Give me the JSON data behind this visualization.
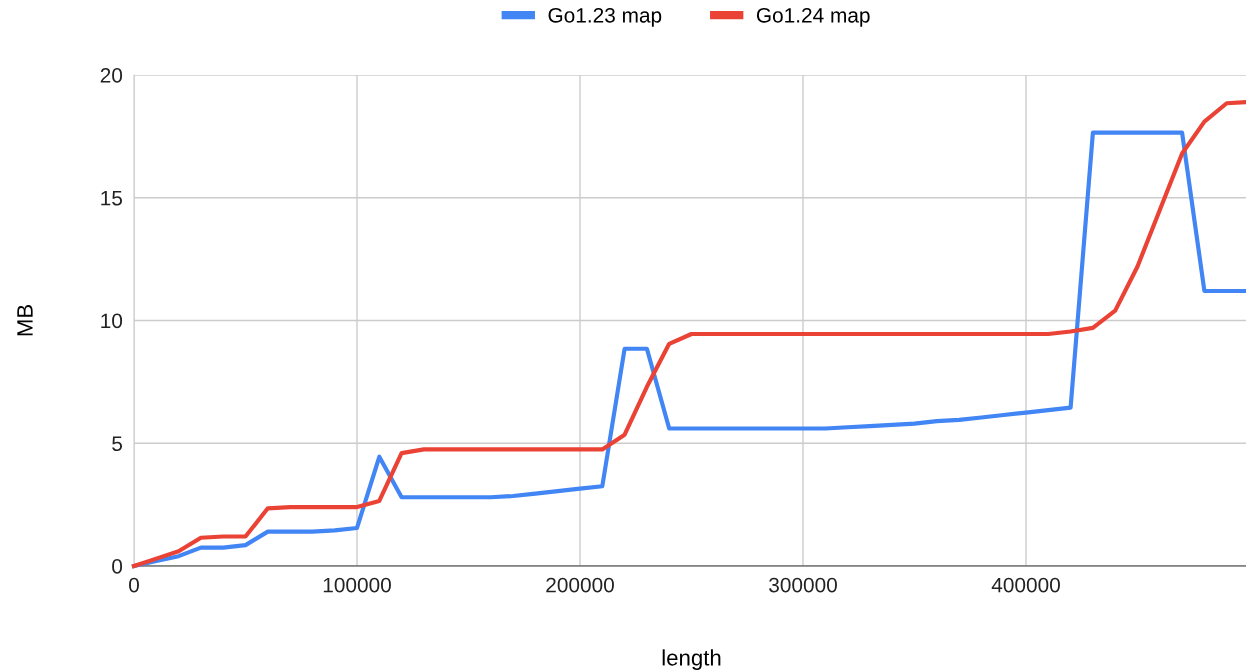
{
  "chart_data": {
    "type": "line",
    "xlabel": "length",
    "ylabel": "MB",
    "x": [
      0,
      10000,
      20000,
      30000,
      40000,
      50000,
      60000,
      70000,
      80000,
      90000,
      100000,
      110000,
      120000,
      130000,
      140000,
      150000,
      160000,
      170000,
      180000,
      190000,
      200000,
      210000,
      220000,
      230000,
      240000,
      250000,
      260000,
      270000,
      280000,
      290000,
      300000,
      310000,
      320000,
      330000,
      340000,
      350000,
      360000,
      370000,
      380000,
      390000,
      400000,
      410000,
      420000,
      430000,
      440000,
      450000,
      460000,
      470000,
      480000,
      490000,
      500000
    ],
    "series": [
      {
        "name": "Go1.23 map",
        "color": "#4285f4",
        "values": [
          0,
          0.2,
          0.4,
          0.75,
          0.75,
          0.85,
          1.4,
          1.4,
          1.4,
          1.45,
          1.55,
          4.45,
          2.8,
          2.8,
          2.8,
          2.8,
          2.8,
          2.85,
          2.95,
          3.05,
          3.15,
          3.25,
          8.85,
          8.85,
          5.6,
          5.6,
          5.6,
          5.6,
          5.6,
          5.6,
          5.6,
          5.6,
          5.65,
          5.7,
          5.75,
          5.8,
          5.9,
          5.95,
          6.05,
          6.15,
          6.25,
          6.35,
          6.45,
          17.65,
          17.65,
          17.65,
          17.65,
          17.65,
          11.2,
          11.2,
          11.2
        ]
      },
      {
        "name": "Go1.24 map",
        "color": "#ea4335",
        "values": [
          0,
          0.3,
          0.6,
          1.15,
          1.2,
          1.2,
          2.35,
          2.4,
          2.4,
          2.4,
          2.4,
          2.65,
          4.6,
          4.75,
          4.75,
          4.75,
          4.75,
          4.75,
          4.75,
          4.75,
          4.75,
          4.75,
          5.35,
          7.3,
          9.05,
          9.45,
          9.45,
          9.45,
          9.45,
          9.45,
          9.45,
          9.45,
          9.45,
          9.45,
          9.45,
          9.45,
          9.45,
          9.45,
          9.45,
          9.45,
          9.45,
          9.45,
          9.55,
          9.7,
          10.4,
          12.2,
          14.5,
          16.8,
          18.1,
          18.85,
          18.9
        ]
      }
    ],
    "xlim": [
      0,
      500000
    ],
    "xticks": [
      0,
      100000,
      200000,
      300000,
      400000
    ],
    "ylim": [
      0,
      20
    ],
    "yticks": [
      0,
      5,
      10,
      15,
      20
    ],
    "grid": true,
    "legend": "top",
    "marker": "none",
    "line_style": "solid"
  }
}
